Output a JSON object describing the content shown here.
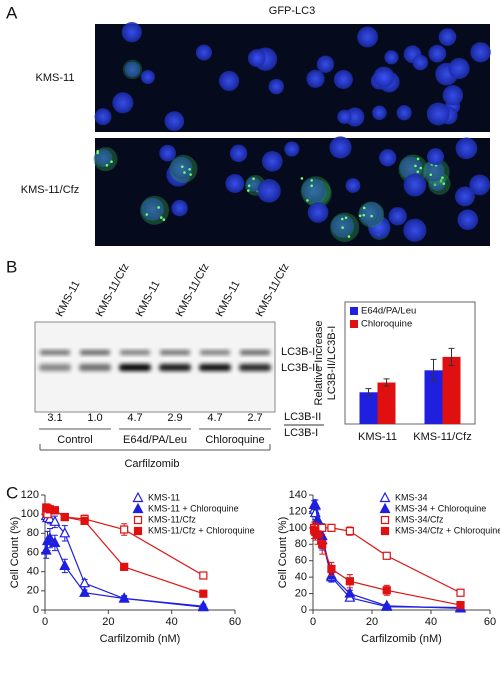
{
  "panel_a": {
    "label": "A",
    "title": "GFP-LC3",
    "rows": [
      "KMS-11",
      "KMS-11/Cfz"
    ]
  },
  "panel_b": {
    "label": "B",
    "lanes": [
      "KMS-11",
      "KMS-11/Cfz",
      "KMS-11",
      "KMS-11/Cfz",
      "KMS-11",
      "KMS-11/Cfz"
    ],
    "bands": [
      "LC3B-I",
      "LC3B-II"
    ],
    "ratios": [
      "3.1",
      "1.0",
      "4.7",
      "2.9",
      "4.7",
      "2.7"
    ],
    "ratio_label": [
      "LC3B-II",
      "LC3B-I"
    ],
    "groups": [
      "Control",
      "E64d/PA/Leu",
      "Chloroquine"
    ],
    "treatment": "Carfilzomib"
  },
  "panel_c": {
    "label": "C"
  },
  "chart_data": [
    {
      "type": "bar",
      "y_label": [
        "Relative Increase",
        "LC3B-II/LC3B-I"
      ],
      "categories": [
        "KMS-11",
        "KMS-11/Cfz"
      ],
      "series": [
        {
          "name": "E64d/PA/Leu",
          "color": "#1f1fe0",
          "values": [
            1.3,
            2.2
          ],
          "errors": [
            0.15,
            0.45
          ]
        },
        {
          "name": "Chloroquine",
          "color": "#e01010",
          "values": [
            1.7,
            2.75
          ],
          "errors": [
            0.15,
            0.35
          ]
        }
      ],
      "ylim": [
        0,
        5
      ]
    },
    {
      "type": "line",
      "x_label": "Carfilzomib (nM)",
      "y_label": "Cell Count (%)",
      "x": [
        0.39,
        0.78,
        1.56,
        3.125,
        6.25,
        12.5,
        25,
        50
      ],
      "series": [
        {
          "name": "KMS-11",
          "color": "#1f1fe0",
          "marker": "triangle",
          "filled": false,
          "values": [
            98,
            96,
            95,
            92,
            80,
            28,
            12,
            4
          ],
          "errors": [
            4,
            4,
            5,
            6,
            8,
            4,
            3,
            2
          ]
        },
        {
          "name": "KMS-11 + Chloroquine",
          "color": "#1f1fe0",
          "marker": "triangle",
          "filled": true,
          "values": [
            62,
            72,
            75,
            70,
            46,
            18,
            12,
            3
          ],
          "errors": [
            8,
            10,
            10,
            8,
            7,
            3,
            2,
            1
          ]
        },
        {
          "name": "KMS-11/Cfz",
          "color": "#e01010",
          "marker": "square",
          "filled": false,
          "values": [
            102,
            100,
            105,
            104,
            97,
            95,
            84,
            36
          ],
          "errors": [
            3,
            3,
            2,
            2,
            3,
            4,
            6,
            3
          ]
        },
        {
          "name": "KMS-11/Cfz + Chloroquine",
          "color": "#e01010",
          "marker": "square",
          "filled": true,
          "values": [
            107,
            106,
            105,
            104,
            97,
            93,
            45,
            17
          ],
          "errors": [
            2,
            2,
            2,
            2,
            2,
            3,
            2,
            2
          ]
        }
      ],
      "xlim": [
        0,
        60
      ],
      "xticks": [
        0,
        20,
        40,
        60
      ],
      "ylim": [
        0,
        120
      ],
      "yticks": [
        0,
        20,
        40,
        60,
        80,
        100,
        120
      ]
    },
    {
      "type": "line",
      "x_label": "Carfilzomib (nM)",
      "y_label": "Cell Count (%)",
      "x": [
        0.39,
        0.78,
        1.56,
        3.125,
        6.25,
        12.5,
        25,
        50
      ],
      "series": [
        {
          "name": "KMS-34",
          "color": "#1f1fe0",
          "marker": "triangle",
          "filled": false,
          "values": [
            122,
            118,
            100,
            85,
            40,
            15,
            4,
            3
          ],
          "errors": [
            6,
            8,
            10,
            12,
            5,
            3,
            2,
            1
          ]
        },
        {
          "name": "KMS-34 + Chloroquine",
          "color": "#1f1fe0",
          "marker": "triangle",
          "filled": true,
          "values": [
            128,
            128,
            110,
            90,
            42,
            20,
            5,
            2
          ],
          "errors": [
            5,
            6,
            12,
            15,
            8,
            4,
            2,
            1
          ]
        },
        {
          "name": "KMS-34/Cfz",
          "color": "#e01010",
          "marker": "square",
          "filled": false,
          "values": [
            100,
            98,
            100,
            100,
            100,
            96,
            66,
            21
          ],
          "errors": [
            3,
            3,
            3,
            3,
            4,
            5,
            3,
            3
          ]
        },
        {
          "name": "KMS-34/Cfz + Chloroquine",
          "color": "#e01010",
          "marker": "square",
          "filled": true,
          "values": [
            97,
            95,
            92,
            80,
            50,
            35,
            24,
            6
          ],
          "errors": [
            10,
            10,
            12,
            12,
            8,
            8,
            6,
            2
          ]
        }
      ],
      "xlim": [
        0,
        60
      ],
      "xticks": [
        0,
        20,
        40,
        60
      ],
      "ylim": [
        0,
        140
      ],
      "yticks": [
        0,
        20,
        40,
        60,
        80,
        100,
        120,
        140
      ]
    }
  ]
}
